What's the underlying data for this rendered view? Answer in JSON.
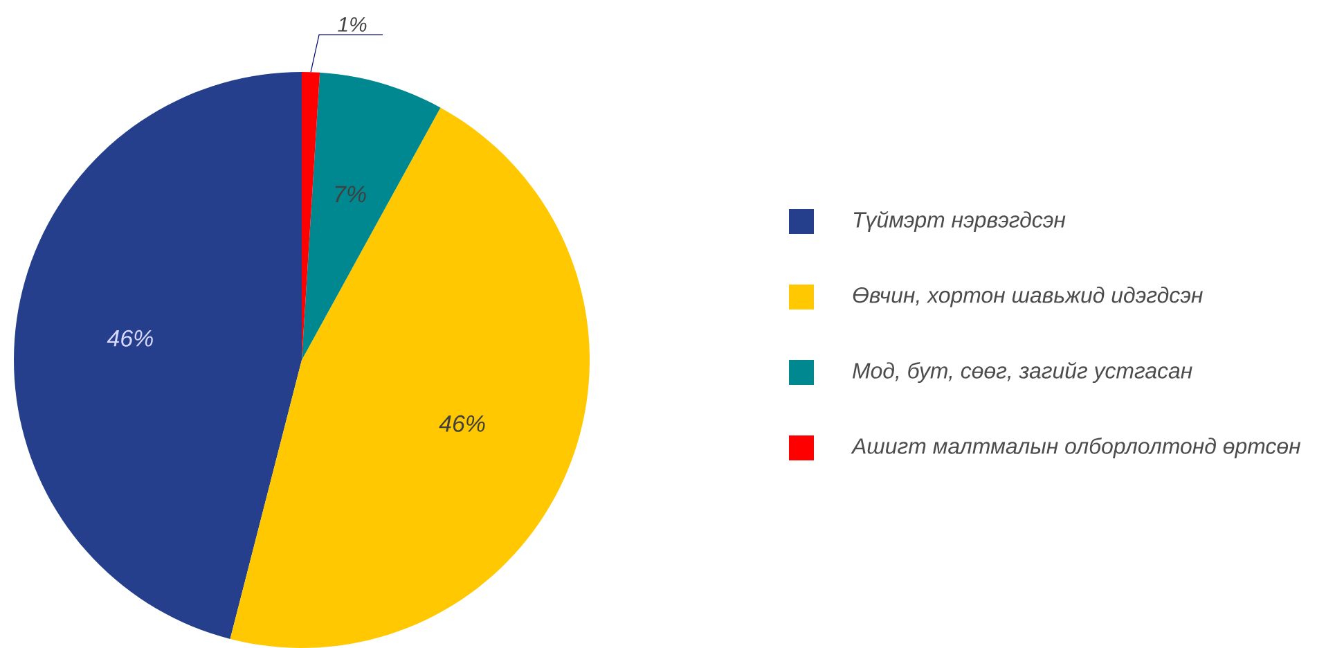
{
  "chart_data": {
    "type": "pie",
    "categories": [
      "Түймэрт нэрвэгдсэн",
      "Өвчин, хортон шавьжид идэгдсэн",
      "Мод, бут, сөөг, загийг устгасан",
      "Ашигт малтмалын олборлолтонд өртсөн"
    ],
    "values": [
      46,
      46,
      7,
      1
    ],
    "colors": [
      "#263f8c",
      "#ffc800",
      "#008891",
      "#ff0000"
    ],
    "value_labels": [
      "46%",
      "46%",
      "7%",
      "1%"
    ],
    "legend": "right"
  }
}
